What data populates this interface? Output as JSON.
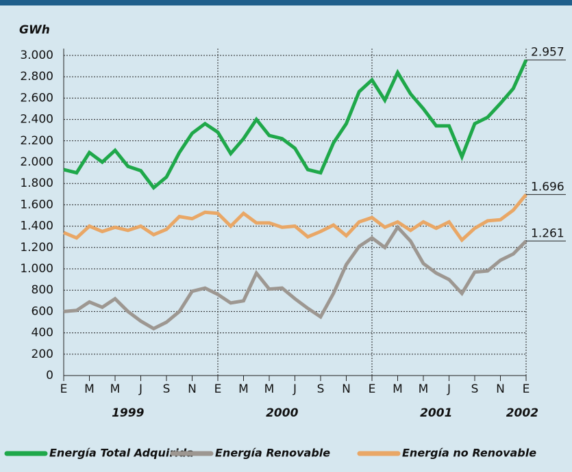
{
  "chart_data": {
    "type": "line",
    "y_label": "GWh",
    "categories": [
      "E",
      null,
      "M",
      null,
      "M",
      null,
      "J",
      null,
      "S",
      null,
      "N",
      null,
      "E",
      null,
      "M",
      null,
      "M",
      null,
      "J",
      null,
      "S",
      null,
      "N",
      null,
      "E",
      null,
      "M",
      null,
      "M",
      null,
      "J",
      null,
      "S",
      null,
      "N",
      null,
      "E"
    ],
    "year_labels": [
      "1999",
      "2000",
      "2001",
      "2002"
    ],
    "ylim": [
      0,
      3000
    ],
    "yticks": [
      0,
      200,
      400,
      600,
      800,
      {
        "value": 1000,
        "label": "1.000"
      },
      {
        "value": 1200,
        "label": "1.200"
      },
      {
        "value": 1400,
        "label": "1.400"
      },
      {
        "value": 1600,
        "label": "1.600"
      },
      {
        "value": 1800,
        "label": "1.800"
      },
      {
        "value": 2000,
        "label": "2.000"
      },
      {
        "value": 2200,
        "label": "2.200"
      },
      {
        "value": 2400,
        "label": "2.400"
      },
      {
        "value": 2600,
        "label": "2.600"
      },
      {
        "value": 2800,
        "label": "2.800"
      },
      {
        "value": 3000,
        "label": "3.000"
      }
    ],
    "grid": true,
    "series": [
      {
        "name": "Energía Total Adquirida",
        "color": "#1fa84a",
        "end_label": "2.957",
        "values": [
          1930,
          1900,
          2090,
          2000,
          2110,
          1960,
          1920,
          1760,
          1860,
          2090,
          2270,
          2360,
          2280,
          2080,
          2220,
          2400,
          2250,
          2220,
          2130,
          1930,
          1900,
          2180,
          2360,
          2660,
          2770,
          2580,
          2840,
          2640,
          2500,
          2340,
          2340,
          2050,
          2360,
          2420,
          2550,
          2690,
          2957
        ]
      },
      {
        "name": "Energía Renovable",
        "color": "#9d9791",
        "end_label": "1.261",
        "values": [
          600,
          610,
          690,
          640,
          720,
          600,
          510,
          440,
          500,
          600,
          790,
          820,
          760,
          680,
          700,
          960,
          810,
          820,
          720,
          630,
          550,
          770,
          1040,
          1210,
          1290,
          1200,
          1390,
          1260,
          1050,
          960,
          900,
          770,
          970,
          980,
          1080,
          1140,
          1261
        ]
      },
      {
        "name": "Energía no Renovable",
        "color": "#e9a766",
        "end_label": "1.696",
        "values": [
          1340,
          1290,
          1400,
          1350,
          1390,
          1360,
          1400,
          1320,
          1370,
          1490,
          1470,
          1530,
          1520,
          1400,
          1520,
          1430,
          1430,
          1390,
          1400,
          1300,
          1350,
          1410,
          1310,
          1440,
          1480,
          1390,
          1440,
          1360,
          1440,
          1380,
          1440,
          1270,
          1380,
          1450,
          1460,
          1550,
          1696
        ]
      }
    ]
  }
}
